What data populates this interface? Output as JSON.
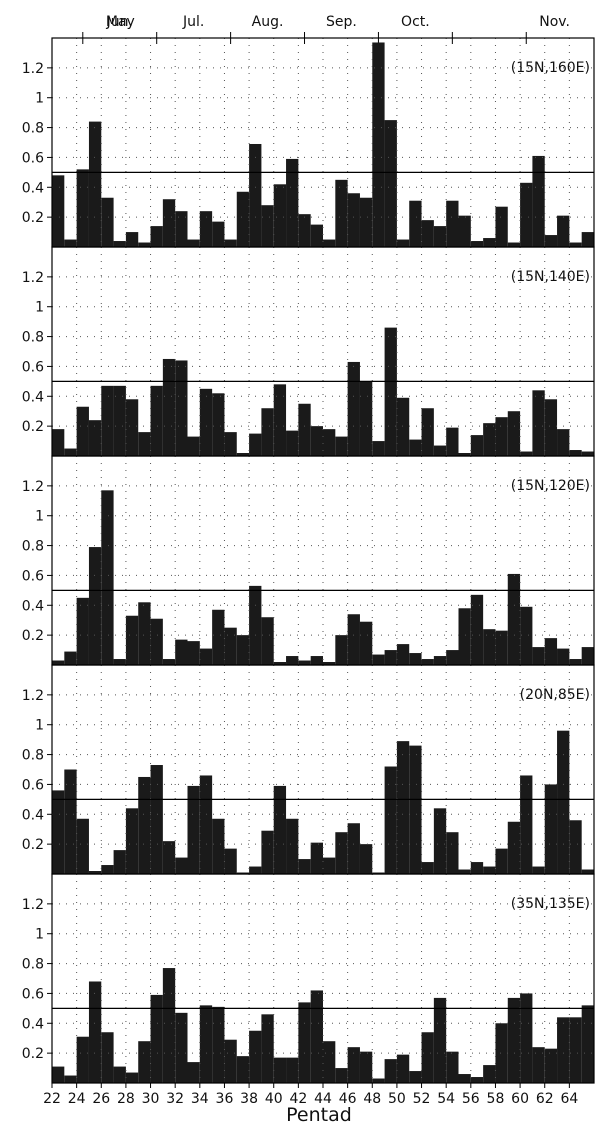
{
  "chart_data": {
    "type": "bar",
    "xlabel": "Pentad",
    "ylim": [
      0,
      1.4
    ],
    "reference_line": 0.5,
    "bar_color": "#1a1a1a",
    "months": [
      "May",
      "Jun.",
      "Jul.",
      "Aug.",
      "Sep.",
      "Oct.",
      "Nov."
    ],
    "x_ticks": [
      "22",
      "24",
      "26",
      "28",
      "30",
      "32",
      "34",
      "36",
      "38",
      "40",
      "42",
      "44",
      "46",
      "48",
      "50",
      "52",
      "54",
      "56",
      "58",
      "60",
      "62",
      "64"
    ],
    "y_ticks": [
      "0.2",
      "0.4",
      "0.6",
      "0.8",
      "1",
      "1.2"
    ],
    "categories": [
      22,
      23,
      24,
      25,
      26,
      27,
      28,
      29,
      30,
      31,
      32,
      33,
      34,
      35,
      36,
      37,
      38,
      39,
      40,
      41,
      42,
      43,
      44,
      45,
      46,
      47,
      48,
      49,
      50,
      51,
      52,
      53,
      54,
      55,
      56,
      57,
      58,
      59,
      60,
      61,
      62,
      63,
      64,
      65
    ],
    "panels": [
      {
        "label": "(15N,160E)",
        "values": [
          0.48,
          0.05,
          0.52,
          0.84,
          0.33,
          0.04,
          0.1,
          0.03,
          0.14,
          0.32,
          0.24,
          0.05,
          0.24,
          0.17,
          0.05,
          0.37,
          0.69,
          0.28,
          0.42,
          0.59,
          0.22,
          0.15,
          0.05,
          0.45,
          0.36,
          0.33,
          1.37,
          0.85,
          0.05,
          0.31,
          0.18,
          0.14,
          0.31,
          0.21,
          0.04,
          0.06,
          0.27,
          0.03,
          0.43,
          0.61,
          0.08,
          0.21,
          0.03,
          0.1
        ]
      },
      {
        "label": "(15N,140E)",
        "values": [
          0.18,
          0.05,
          0.33,
          0.24,
          0.47,
          0.47,
          0.38,
          0.16,
          0.47,
          0.65,
          0.64,
          0.13,
          0.45,
          0.42,
          0.16,
          0.02,
          0.15,
          0.32,
          0.48,
          0.17,
          0.35,
          0.2,
          0.18,
          0.13,
          0.63,
          0.5,
          0.1,
          0.86,
          0.39,
          0.11,
          0.32,
          0.07,
          0.19,
          0.02,
          0.14,
          0.22,
          0.26,
          0.3,
          0.03,
          0.44,
          0.38,
          0.18,
          0.04,
          0.03
        ]
      },
      {
        "label": "(15N,120E)",
        "values": [
          0.03,
          0.09,
          0.45,
          0.79,
          1.17,
          0.04,
          0.33,
          0.42,
          0.31,
          0.04,
          0.17,
          0.16,
          0.11,
          0.37,
          0.25,
          0.2,
          0.53,
          0.32,
          0.02,
          0.06,
          0.03,
          0.06,
          0.02,
          0.2,
          0.34,
          0.29,
          0.07,
          0.1,
          0.14,
          0.08,
          0.04,
          0.06,
          0.1,
          0.38,
          0.47,
          0.24,
          0.23,
          0.61,
          0.39,
          0.12,
          0.18,
          0.11,
          0.04,
          0.12
        ]
      },
      {
        "label": "(20N,85E)",
        "values": [
          0.56,
          0.7,
          0.37,
          0.02,
          0.06,
          0.16,
          0.44,
          0.65,
          0.73,
          0.22,
          0.11,
          0.59,
          0.66,
          0.37,
          0.17,
          0.01,
          0.05,
          0.29,
          0.59,
          0.37,
          0.1,
          0.21,
          0.11,
          0.28,
          0.34,
          0.2,
          0.01,
          0.72,
          0.89,
          0.86,
          0.08,
          0.44,
          0.28,
          0.03,
          0.08,
          0.05,
          0.17,
          0.35,
          0.66,
          0.05,
          0.6,
          0.96,
          0.36,
          0.03
        ]
      },
      {
        "label": "(35N,135E)",
        "values": [
          0.11,
          0.05,
          0.31,
          0.68,
          0.34,
          0.11,
          0.07,
          0.28,
          0.59,
          0.77,
          0.47,
          0.14,
          0.52,
          0.51,
          0.29,
          0.18,
          0.35,
          0.46,
          0.17,
          0.17,
          0.54,
          0.62,
          0.28,
          0.1,
          0.24,
          0.21,
          0.03,
          0.16,
          0.19,
          0.08,
          0.34,
          0.57,
          0.21,
          0.06,
          0.04,
          0.12,
          0.4,
          0.57,
          0.6,
          0.24,
          0.23,
          0.44,
          0.44,
          0.52
        ]
      }
    ]
  }
}
